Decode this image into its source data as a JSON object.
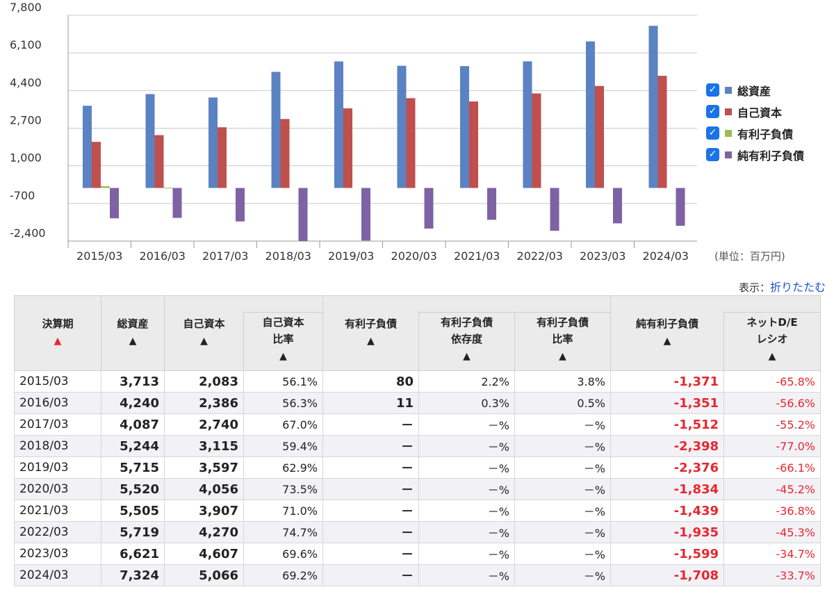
{
  "chart_data": {
    "type": "bar",
    "categories": [
      "2015/03",
      "2016/03",
      "2017/03",
      "2018/03",
      "2019/03",
      "2020/03",
      "2021/03",
      "2022/03",
      "2023/03",
      "2024/03"
    ],
    "series": [
      {
        "name": "総資産",
        "color": "#5b82c2",
        "values": [
          3713,
          4240,
          4087,
          5244,
          5715,
          5520,
          5505,
          5719,
          6621,
          7324
        ]
      },
      {
        "name": "自己資本",
        "color": "#bf504d",
        "values": [
          2083,
          2386,
          2740,
          3115,
          3597,
          4056,
          3907,
          4270,
          4607,
          5066
        ]
      },
      {
        "name": "有利子負債",
        "color": "#9bbb59",
        "values": [
          80,
          11,
          0,
          0,
          0,
          0,
          0,
          0,
          0,
          0
        ]
      },
      {
        "name": "純有利子負債",
        "color": "#7e62a4",
        "values": [
          -1371,
          -1351,
          -1512,
          -2398,
          -2376,
          -1834,
          -1439,
          -1935,
          -1599,
          -1708
        ]
      }
    ],
    "yticks": [
      7800,
      6100,
      4400,
      2700,
      1000,
      -700,
      -2400
    ],
    "ytick_labels": [
      "7,800",
      "6,100",
      "4,400",
      "2,700",
      "1,000",
      "-700",
      "-2,400"
    ],
    "ylim": [
      -2400,
      7800
    ],
    "unit_label": "(単位：百万円)",
    "legend_position": "right"
  },
  "display": {
    "label": "表示：",
    "link": "折りたたむ"
  },
  "table": {
    "headers": {
      "period": "決算期",
      "total_assets": "総資産",
      "equity": "自己資本",
      "equity_ratio_1": "自己資本",
      "equity_ratio_2": "比率",
      "debt": "有利子負債",
      "debt_dep_1": "有利子負債",
      "debt_dep_2": "依存度",
      "debt_ratio_1": "有利子負債",
      "debt_ratio_2": "比率",
      "net_debt": "純有利子負債",
      "net_de_1": "ネットD/E",
      "net_de_2": "レシオ",
      "sort_icon": "▲"
    },
    "rows": [
      {
        "period": "2015/03",
        "assets": "3,713",
        "equity": "2,083",
        "eq_ratio": "56.1%",
        "debt": "80",
        "debt_dep": "2.2%",
        "debt_ratio": "3.8%",
        "net_debt": "-1,371",
        "net_de": "-65.8%"
      },
      {
        "period": "2016/03",
        "assets": "4,240",
        "equity": "2,386",
        "eq_ratio": "56.3%",
        "debt": "11",
        "debt_dep": "0.3%",
        "debt_ratio": "0.5%",
        "net_debt": "-1,351",
        "net_de": "-56.6%"
      },
      {
        "period": "2017/03",
        "assets": "4,087",
        "equity": "2,740",
        "eq_ratio": "67.0%",
        "debt": "－",
        "debt_dep": "－%",
        "debt_ratio": "－%",
        "net_debt": "-1,512",
        "net_de": "-55.2%"
      },
      {
        "period": "2018/03",
        "assets": "5,244",
        "equity": "3,115",
        "eq_ratio": "59.4%",
        "debt": "－",
        "debt_dep": "－%",
        "debt_ratio": "－%",
        "net_debt": "-2,398",
        "net_de": "-77.0%"
      },
      {
        "period": "2019/03",
        "assets": "5,715",
        "equity": "3,597",
        "eq_ratio": "62.9%",
        "debt": "－",
        "debt_dep": "－%",
        "debt_ratio": "－%",
        "net_debt": "-2,376",
        "net_de": "-66.1%"
      },
      {
        "period": "2020/03",
        "assets": "5,520",
        "equity": "4,056",
        "eq_ratio": "73.5%",
        "debt": "－",
        "debt_dep": "－%",
        "debt_ratio": "－%",
        "net_debt": "-1,834",
        "net_de": "-45.2%"
      },
      {
        "period": "2021/03",
        "assets": "5,505",
        "equity": "3,907",
        "eq_ratio": "71.0%",
        "debt": "－",
        "debt_dep": "－%",
        "debt_ratio": "－%",
        "net_debt": "-1,439",
        "net_de": "-36.8%"
      },
      {
        "period": "2022/03",
        "assets": "5,719",
        "equity": "4,270",
        "eq_ratio": "74.7%",
        "debt": "－",
        "debt_dep": "－%",
        "debt_ratio": "－%",
        "net_debt": "-1,935",
        "net_de": "-45.3%"
      },
      {
        "period": "2023/03",
        "assets": "6,621",
        "equity": "4,607",
        "eq_ratio": "69.6%",
        "debt": "－",
        "debt_dep": "－%",
        "debt_ratio": "－%",
        "net_debt": "-1,599",
        "net_de": "-34.7%"
      },
      {
        "period": "2024/03",
        "assets": "7,324",
        "equity": "5,066",
        "eq_ratio": "69.2%",
        "debt": "－",
        "debt_dep": "－%",
        "debt_ratio": "－%",
        "net_debt": "-1,708",
        "net_de": "-33.7%"
      }
    ]
  }
}
